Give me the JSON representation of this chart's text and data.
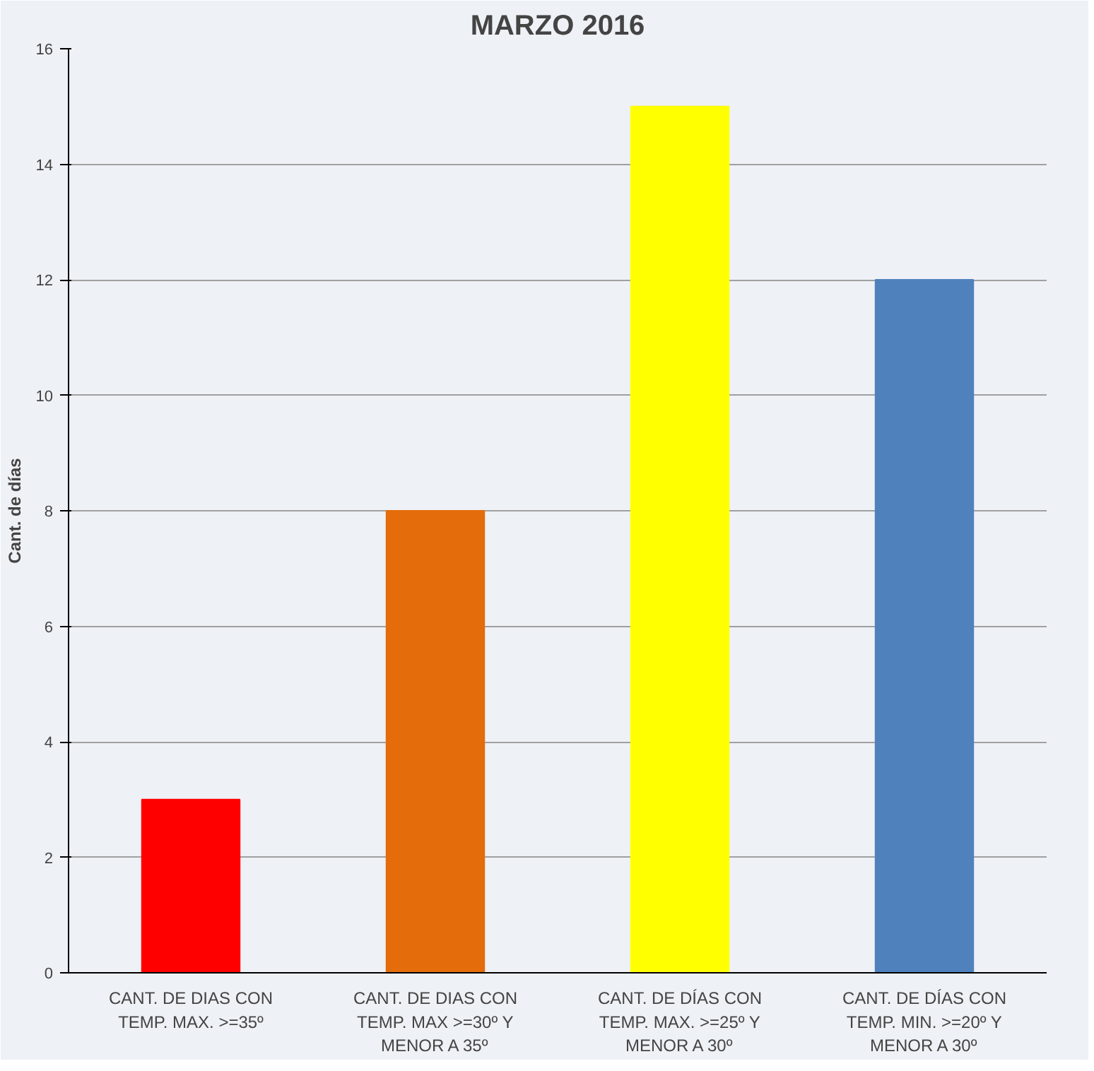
{
  "chart_data": {
    "type": "bar",
    "title": "MARZO 2016",
    "ylabel": "Cant. de días",
    "categories": [
      "CANT. DE DIAS CON\nTEMP. MAX. >=35º",
      "CANT. DE DIAS CON\nTEMP. MAX >=30º Y\nMENOR A 35º",
      "CANT. DE DÍAS CON\nTEMP. MAX. >=25º Y\nMENOR A 30º",
      "CANT. DE DÍAS CON\nTEMP. MIN. >=20º Y\nMENOR A 30º"
    ],
    "values": [
      3,
      8,
      15,
      12
    ],
    "colors": [
      "#ff0000",
      "#e46c0a",
      "#ffff00",
      "#4f81bd"
    ],
    "ylim": [
      0,
      16
    ],
    "yticks": [
      0,
      2,
      4,
      6,
      8,
      10,
      12,
      14,
      16
    ],
    "grid": "y"
  }
}
